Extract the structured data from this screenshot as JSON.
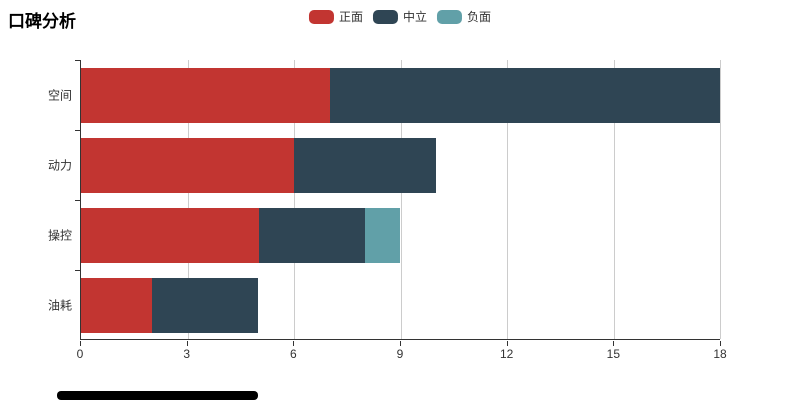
{
  "title": "口碑分析",
  "legend": {
    "position": "top-center",
    "items": [
      {
        "label": "正面",
        "color": "#c23531"
      },
      {
        "label": "中立",
        "color": "#2f4554"
      },
      {
        "label": "负面",
        "color": "#61a0a8"
      }
    ]
  },
  "chart_data": {
    "type": "bar",
    "orientation": "horizontal",
    "stacked": true,
    "title": "口碑分析",
    "categories": [
      "空间",
      "动力",
      "操控",
      "油耗"
    ],
    "series": [
      {
        "name": "正面",
        "color": "#c23531",
        "values": [
          7,
          6,
          5,
          2
        ]
      },
      {
        "name": "中立",
        "color": "#2f4554",
        "values": [
          11,
          4,
          3,
          3
        ]
      },
      {
        "name": "负面",
        "color": "#61a0a8",
        "values": [
          0,
          0,
          1,
          0
        ]
      }
    ],
    "totals": [
      18,
      10,
      9,
      5
    ],
    "xlim": [
      0,
      18
    ],
    "x_ticks": [
      0,
      3,
      6,
      9,
      12,
      15,
      18
    ],
    "grid": true,
    "legend_position": "top-center"
  },
  "colors": {
    "axis": "#333333",
    "grid": "#cccccc",
    "text": "#333333",
    "title": "#000000",
    "footer_bar": "#000000"
  }
}
